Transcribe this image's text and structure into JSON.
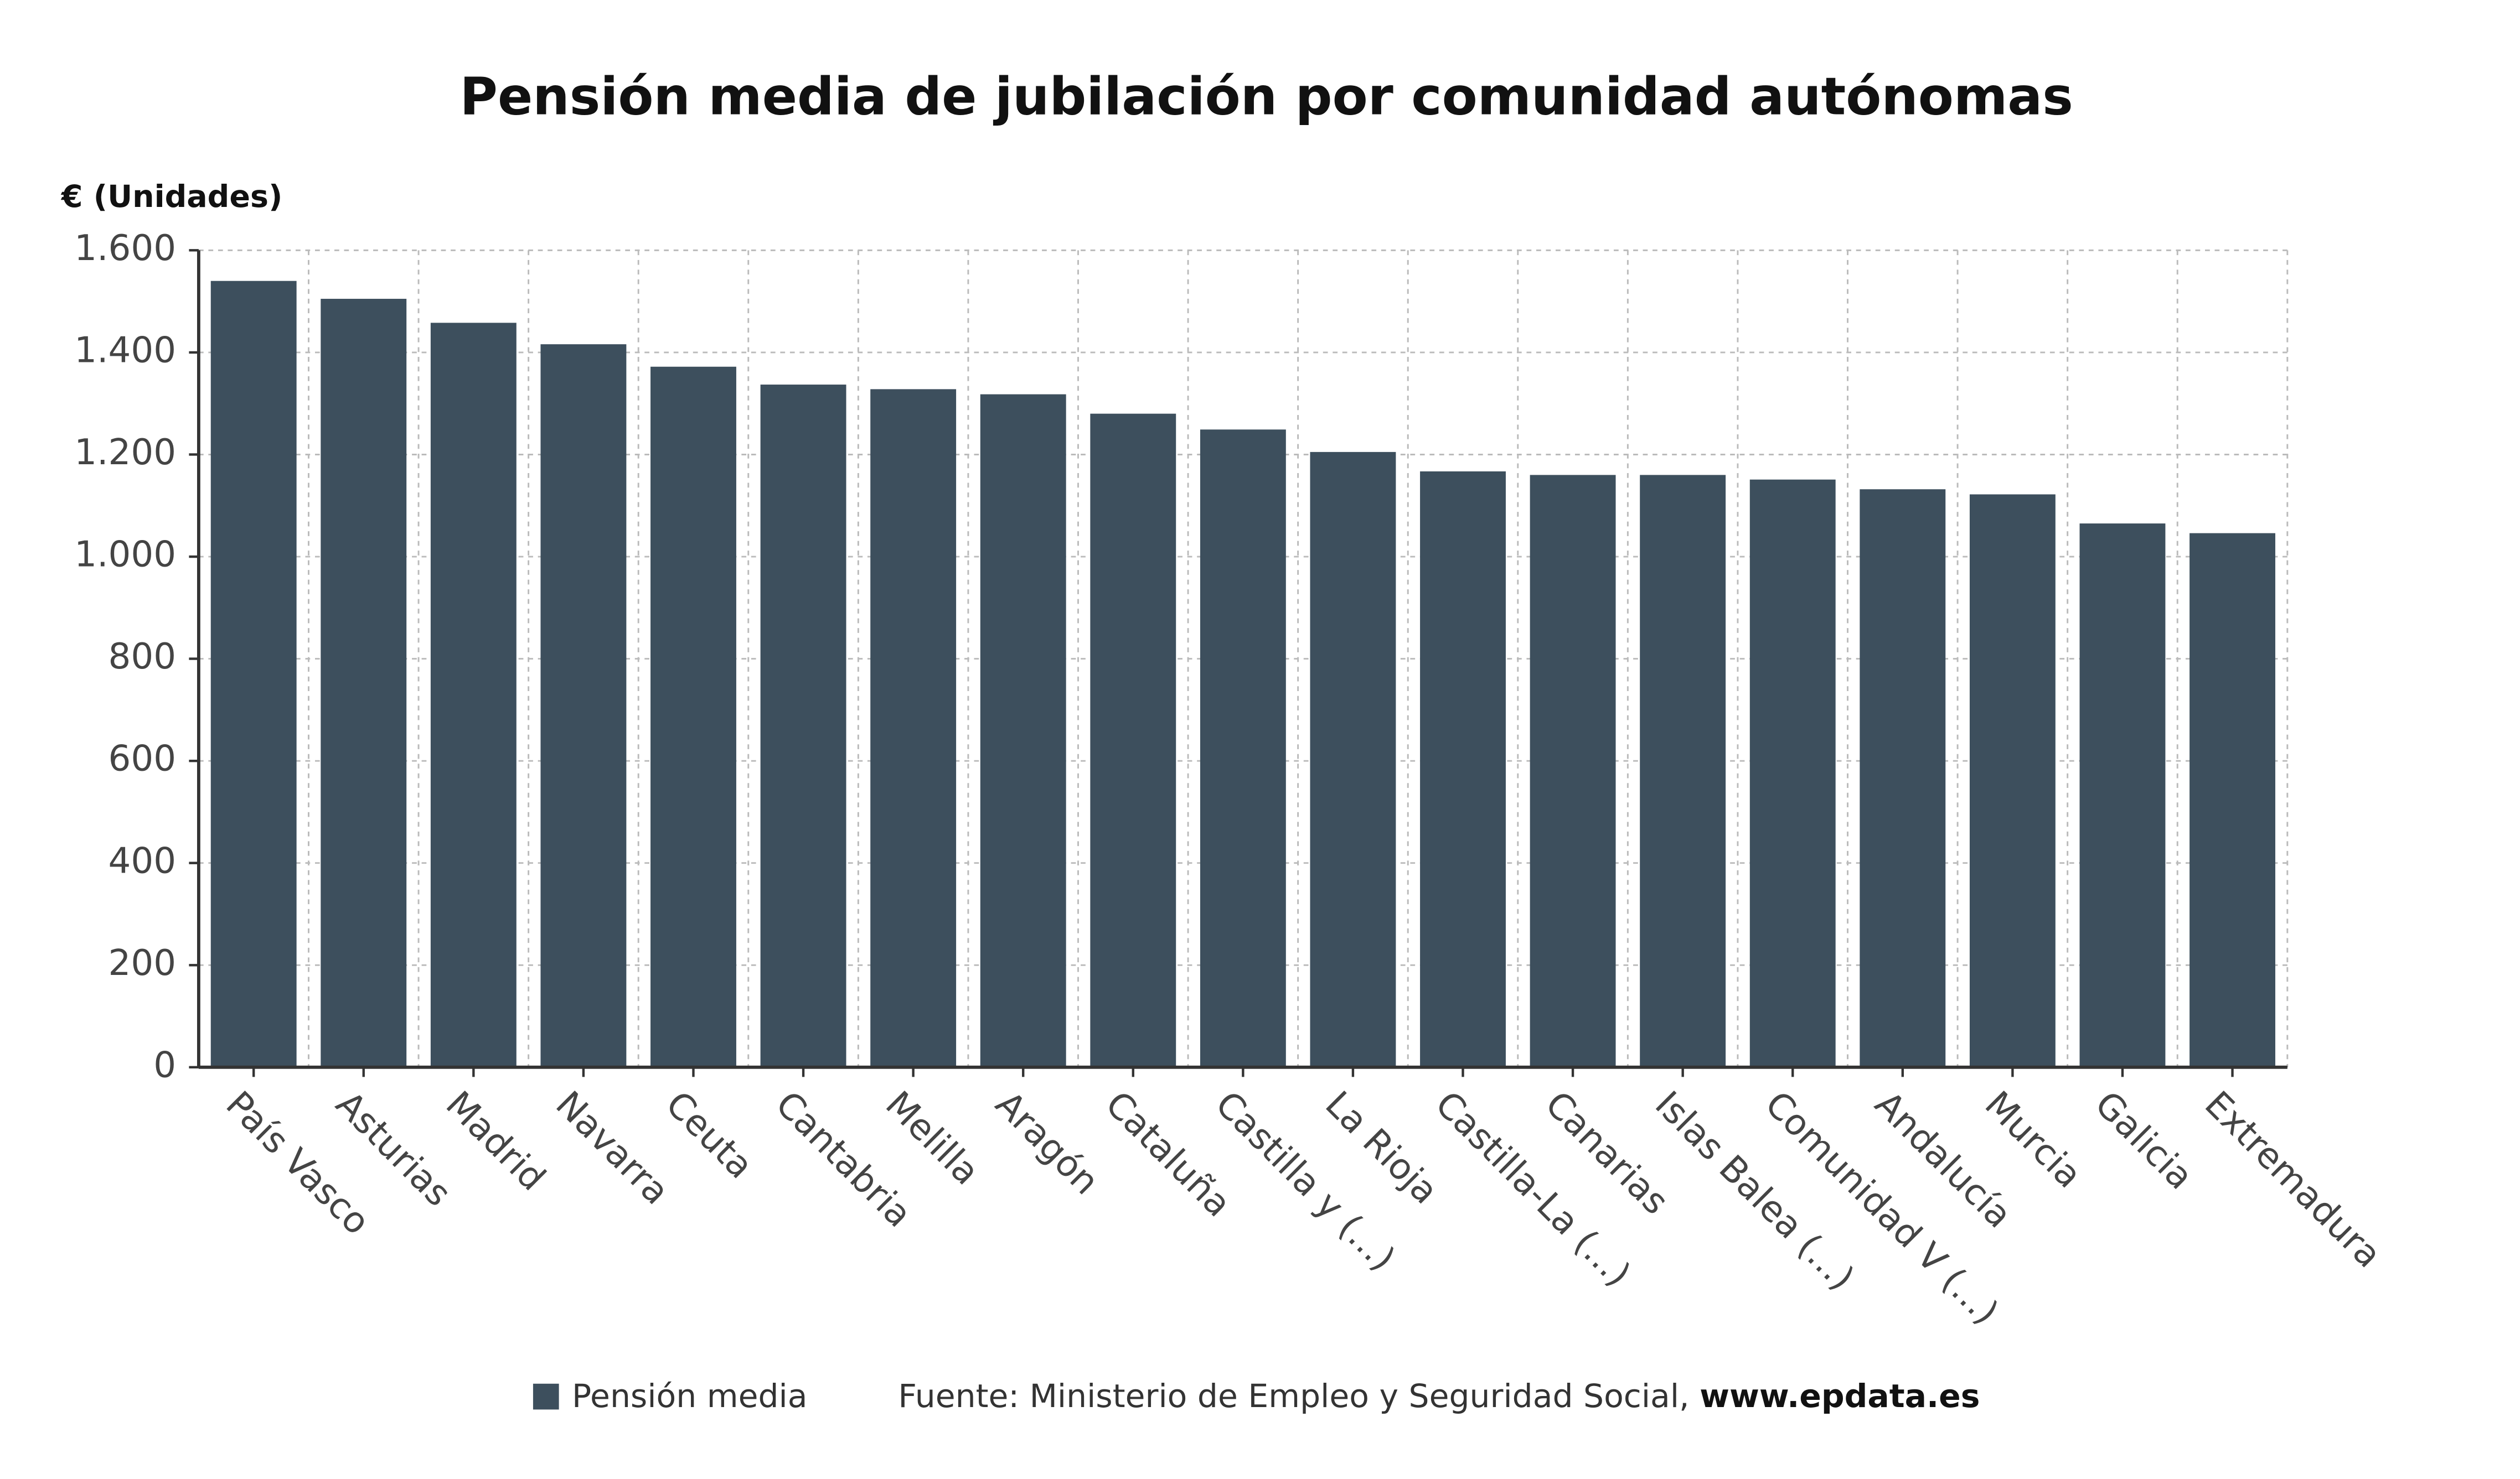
{
  "chart_data": {
    "type": "bar",
    "title": "Pensión media de jubilación por comunidad autónomas",
    "y_axis_label": "€ (Unidades)",
    "categories": [
      "País Vasco",
      "Asturias",
      "Madrid",
      "Navarra",
      "Ceuta",
      "Cantabria",
      "Melilla",
      "Aragón",
      "Cataluña",
      "Castilla y (...)",
      "La Rioja",
      "Castilla-La (...)",
      "Canarias",
      "Islas Balea (...)",
      "Comunidad V (...)",
      "Andalucía",
      "Murcia",
      "Galicia",
      "Extremadura"
    ],
    "series": [
      {
        "name": "Pensión media",
        "color": "#3d4f5d",
        "values": [
          1540,
          1505,
          1458,
          1416,
          1372,
          1337,
          1328,
          1318,
          1280,
          1249,
          1205,
          1167,
          1160,
          1160,
          1151,
          1132,
          1122,
          1065,
          1046
        ]
      }
    ],
    "ylim": [
      0,
      1600
    ],
    "yticks": [
      0,
      200,
      400,
      600,
      800,
      {
        "value": 1000,
        "label": "1.000"
      },
      {
        "value": 1200,
        "label": "1.200"
      },
      {
        "value": 1400,
        "label": "1.400"
      },
      {
        "value": 1600,
        "label": "1.600"
      }
    ],
    "grid": true,
    "source": "Fuente: Ministerio de Empleo y Seguridad Social,",
    "source_link": "www.epdata.es"
  }
}
